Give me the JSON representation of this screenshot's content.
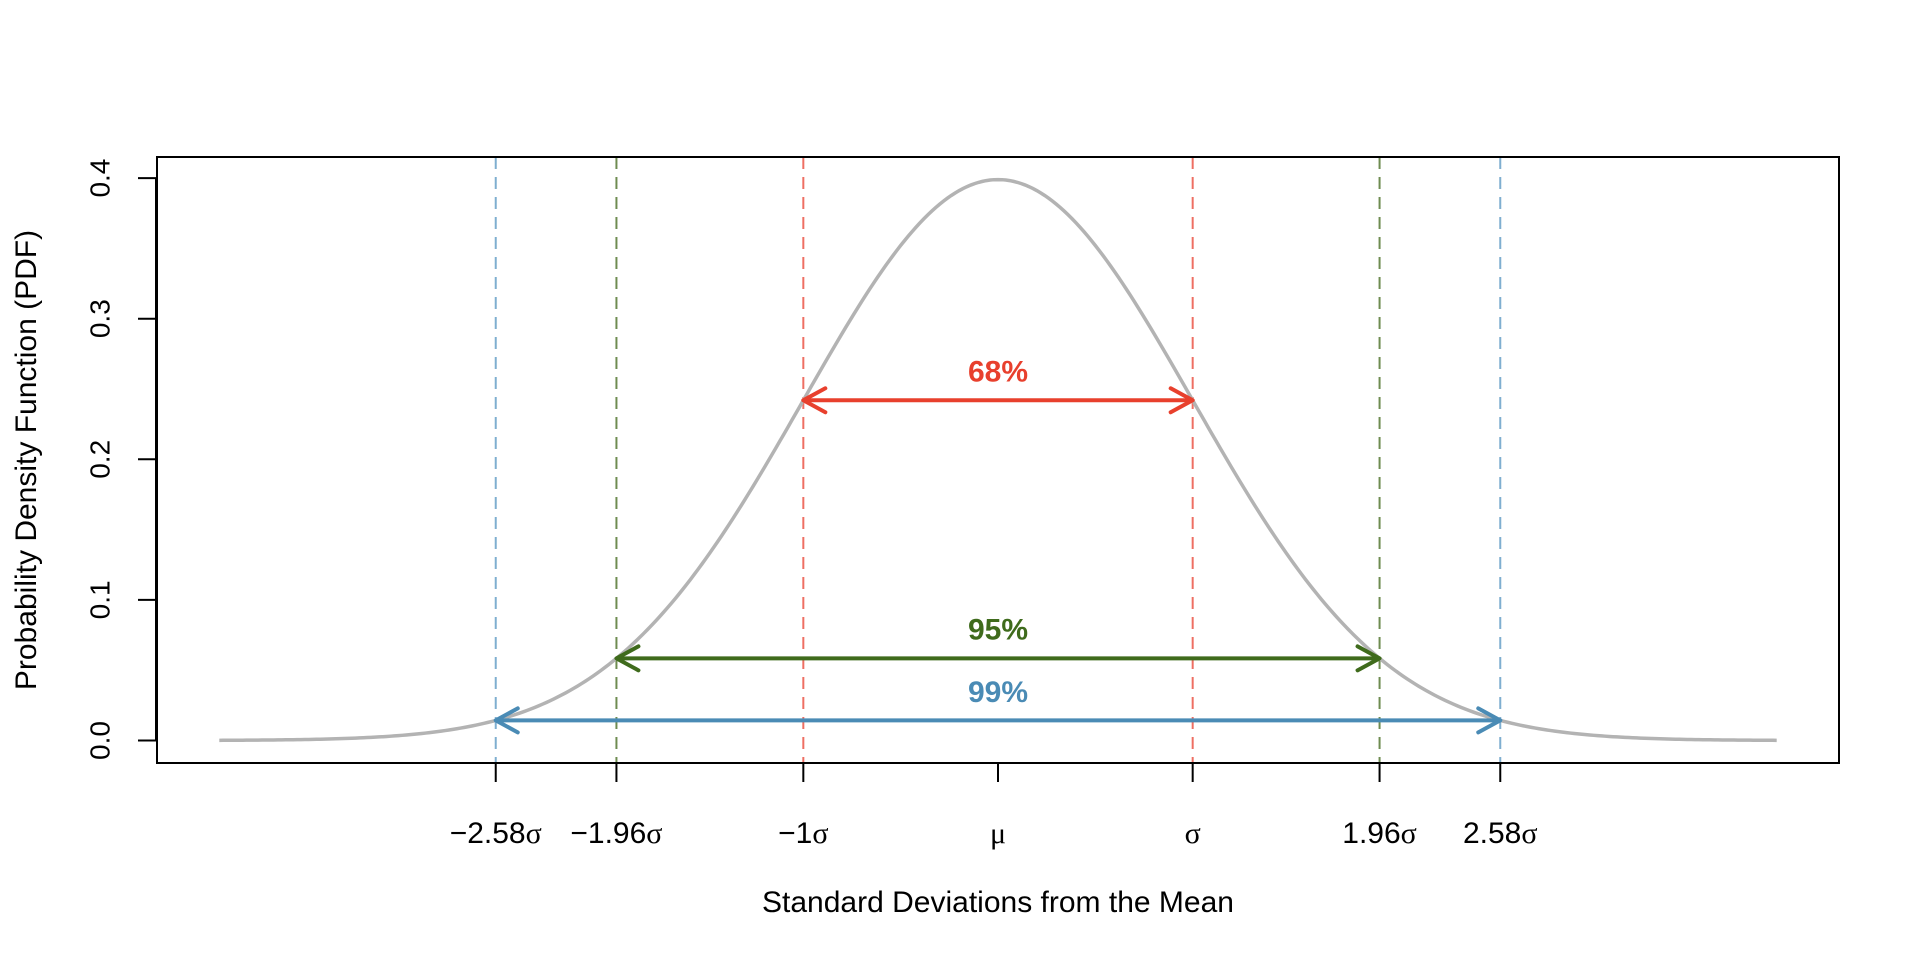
{
  "chart_data": {
    "type": "line",
    "title": "",
    "xlabel": "Standard Deviations from the Mean",
    "ylabel": "Probability Density Function (PDF)",
    "xlim": [
      -4.32,
      4.32
    ],
    "ylim": [
      -0.016,
      0.415
    ],
    "grid": false,
    "curve": {
      "name": "Standard normal PDF",
      "function": "normal_pdf",
      "mean": 0,
      "sd": 1,
      "x_range": [
        -4,
        4
      ],
      "color": "#B3B3B3"
    },
    "y_ticks": [
      {
        "value": 0.0,
        "label": "0.0"
      },
      {
        "value": 0.1,
        "label": "0.1"
      },
      {
        "value": 0.2,
        "label": "0.2"
      },
      {
        "value": 0.3,
        "label": "0.3"
      },
      {
        "value": 0.4,
        "label": "0.4"
      }
    ],
    "x_ticks": [
      {
        "value": -2.58,
        "label": "−2.58σ"
      },
      {
        "value": -1.96,
        "label": "−1.96σ"
      },
      {
        "value": -1,
        "label": "−1σ"
      },
      {
        "value": 0,
        "label": "μ"
      },
      {
        "value": 1,
        "label": "σ"
      },
      {
        "value": 1.96,
        "label": "1.96σ"
      },
      {
        "value": 2.58,
        "label": "2.58σ"
      }
    ],
    "intervals": [
      {
        "name": "68",
        "label": "68%",
        "z": 1,
        "color": "#E8402D",
        "line_color": "#EE6F63",
        "label_offset": 0.02
      },
      {
        "name": "95",
        "label": "95%",
        "z": 1.96,
        "color": "#3F6B1C",
        "line_color": "#6E8C51",
        "label_offset": 0.02
      },
      {
        "name": "99",
        "label": "99%",
        "z": 2.58,
        "color": "#4A8BB5",
        "line_color": "#7FAED0",
        "label_offset": 0.02
      }
    ]
  }
}
